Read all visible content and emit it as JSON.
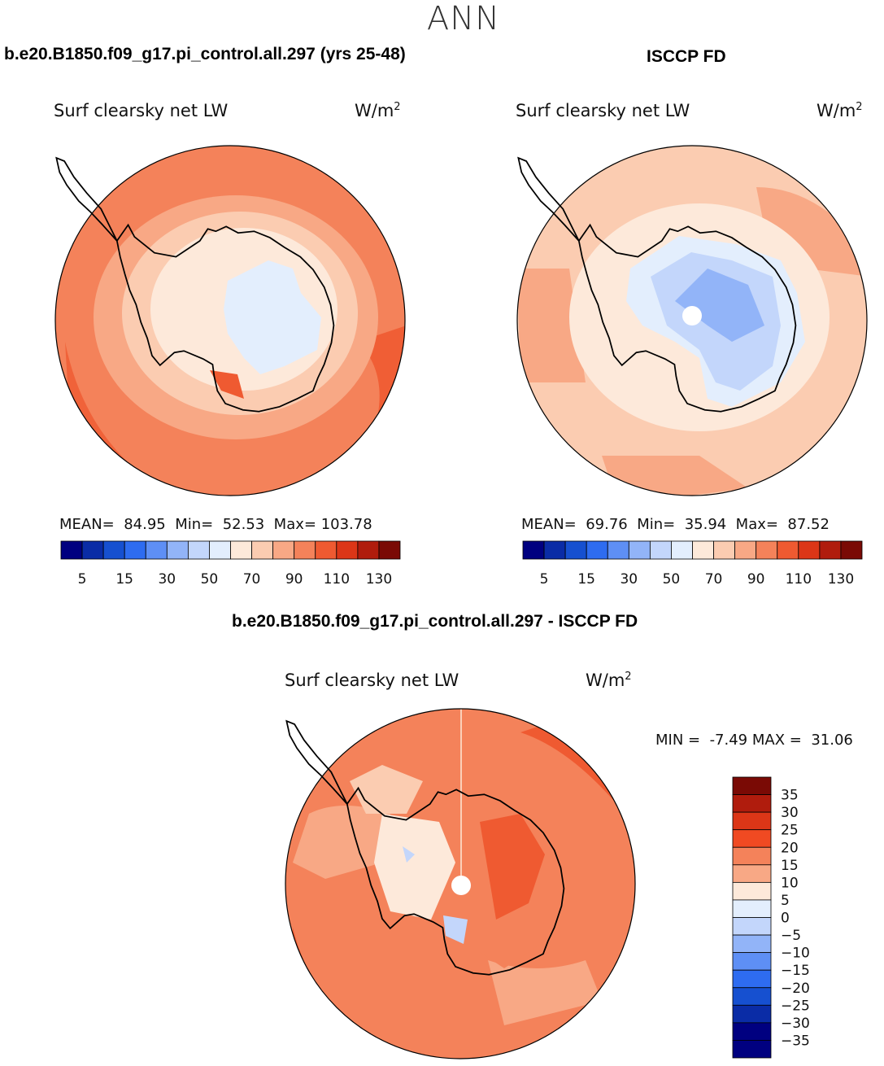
{
  "figure_title": "ANN",
  "panels": {
    "model": {
      "case_title": "b.e20.B1850.f09_g17.pi_control.all.297 (yrs 25-48)",
      "variable": "Surf clearsky net LW",
      "units": "W/m",
      "units_exp": "2",
      "stats": {
        "mean_label": "MEAN=",
        "mean": "84.95",
        "min_label": "Min=",
        "min": "52.53",
        "max_label": "Max=",
        "max": "103.78"
      }
    },
    "obs": {
      "case_title": "ISCCP FD",
      "variable": "Surf clearsky net LW",
      "units": "W/m",
      "units_exp": "2",
      "stats": {
        "mean_label": "MEAN=",
        "mean": "69.76",
        "min_label": "Min=",
        "min": "35.94",
        "max_label": "Max=",
        "max": "87.52"
      }
    },
    "diff": {
      "case_title": "b.e20.B1850.f09_g17.pi_control.all.297 - ISCCP FD",
      "variable": "Surf clearsky net LW",
      "units": "W/m",
      "units_exp": "2",
      "stats": {
        "min_label": "MIN =",
        "min": "-7.49",
        "max_label": "MAX =",
        "max": "31.06"
      }
    }
  },
  "colorbar_abs": {
    "colors": [
      "#000080",
      "#0a2ca6",
      "#1650d0",
      "#2e6cf0",
      "#5e8ff5",
      "#92b4f8",
      "#c3d6fb",
      "#e3eefd",
      "#fde9da",
      "#fbccb1",
      "#f8a885",
      "#f4825a",
      "#ef5a31",
      "#dc3617",
      "#b01c0d",
      "#7a0a05"
    ],
    "tick_labels": [
      "5",
      "15",
      "30",
      "50",
      "70",
      "90",
      "110",
      "130"
    ]
  },
  "colorbar_diff": {
    "colors": [
      "#7a0a05",
      "#b01c0d",
      "#dc3617",
      "#f04a22",
      "#f4825a",
      "#f8a885",
      "#fde9da",
      "#e3eefd",
      "#c3d6fb",
      "#92b4f8",
      "#5e8ff5",
      "#2e6cf0",
      "#1650d0",
      "#0a2ca6",
      "#000080"
    ],
    "tick_labels": [
      "35",
      "30",
      "25",
      "20",
      "15",
      "10",
      "5",
      "0",
      "−5",
      "−10",
      "−15",
      "−20",
      "−25",
      "−30",
      "−35"
    ]
  }
}
